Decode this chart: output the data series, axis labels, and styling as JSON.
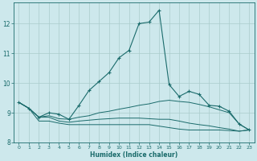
{
  "xlabel": "Humidex (Indice chaleur)",
  "xlim": [
    -0.5,
    23.5
  ],
  "ylim": [
    8.0,
    12.7
  ],
  "yticks": [
    8,
    9,
    10,
    11,
    12
  ],
  "xticks": [
    0,
    1,
    2,
    3,
    4,
    5,
    6,
    7,
    8,
    9,
    10,
    11,
    12,
    13,
    14,
    15,
    16,
    17,
    18,
    19,
    20,
    21,
    22,
    23
  ],
  "bg_color": "#cde8ec",
  "grid_color": "#aacccc",
  "line_color": "#1a6b6b",
  "line1_x": [
    0,
    1,
    2,
    3,
    4,
    5,
    6,
    7,
    8,
    9,
    10,
    11,
    12,
    13,
    14,
    15,
    16,
    17,
    18,
    19,
    20,
    21,
    22,
    23
  ],
  "line1_y": [
    9.35,
    9.15,
    8.85,
    9.0,
    8.95,
    8.78,
    9.25,
    9.75,
    10.05,
    10.35,
    10.85,
    11.1,
    12.0,
    12.05,
    12.45,
    9.95,
    9.55,
    9.72,
    9.62,
    9.25,
    9.22,
    9.05,
    8.62,
    8.42
  ],
  "line2_x": [
    0,
    1,
    2,
    3,
    4,
    5,
    6,
    7,
    8,
    9,
    10,
    11,
    12,
    13,
    14,
    15,
    16,
    17,
    18,
    19,
    20,
    21,
    22,
    23
  ],
  "line2_y": [
    9.35,
    9.15,
    8.85,
    8.9,
    8.8,
    8.78,
    8.85,
    8.9,
    9.0,
    9.05,
    9.12,
    9.18,
    9.25,
    9.3,
    9.38,
    9.42,
    9.38,
    9.35,
    9.28,
    9.2,
    9.1,
    9.0,
    8.62,
    8.42
  ],
  "line3_x": [
    0,
    1,
    2,
    3,
    4,
    5,
    6,
    7,
    8,
    9,
    10,
    11,
    12,
    13,
    14,
    15,
    16,
    17,
    18,
    19,
    20,
    21,
    22,
    23
  ],
  "line3_y": [
    9.35,
    9.15,
    8.85,
    8.85,
    8.72,
    8.68,
    8.72,
    8.75,
    8.78,
    8.8,
    8.82,
    8.82,
    8.82,
    8.8,
    8.78,
    8.78,
    8.72,
    8.65,
    8.6,
    8.56,
    8.5,
    8.45,
    8.38,
    8.42
  ],
  "line4_x": [
    0,
    1,
    2,
    3,
    4,
    5,
    6,
    7,
    8,
    9,
    10,
    11,
    12,
    13,
    14,
    15,
    16,
    17,
    18,
    19,
    20,
    21,
    22,
    23
  ],
  "line4_y": [
    9.35,
    9.15,
    8.72,
    8.72,
    8.65,
    8.6,
    8.6,
    8.6,
    8.6,
    8.6,
    8.6,
    8.6,
    8.6,
    8.6,
    8.55,
    8.5,
    8.45,
    8.42,
    8.42,
    8.42,
    8.42,
    8.4,
    8.38,
    8.42
  ]
}
